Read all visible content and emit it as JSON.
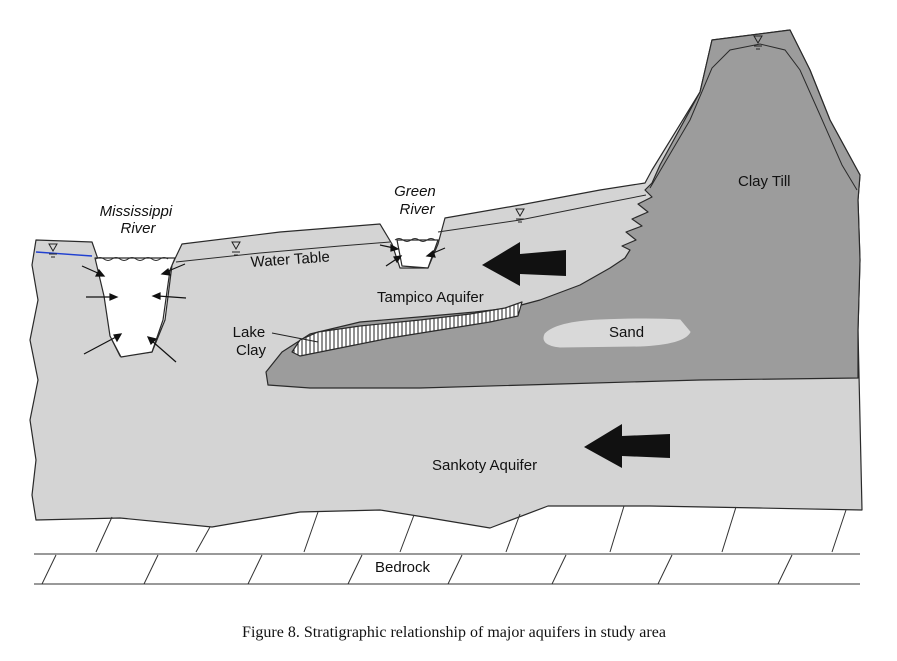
{
  "labels": {
    "mississippi_river": [
      "Mississippi",
      "River"
    ],
    "green_river": [
      "Green",
      "River"
    ],
    "water_table": "Water Table",
    "tampico_aquifer": "Tampico Aquifer",
    "lake_clay": [
      "Lake",
      "Clay"
    ],
    "sand": "Sand",
    "clay_till": "Clay Till",
    "sankoty_aquifer": "Sankoty Aquifer",
    "bedrock": "Bedrock"
  },
  "caption": "Figure 8. Stratigraphic relationship of major aquifers in study area",
  "colors": {
    "aquifer_fill": "#d4d4d4",
    "clay_till_fill": "#9c9c9c",
    "sand_fill": "#d9d9d9",
    "outline": "#2a2a2a",
    "water_line": "#2040d0",
    "flow_arrow": "#111111"
  },
  "icons": [
    "water-table-symbol-icon",
    "flow-arrow-icon",
    "seepage-arrow-icon"
  ]
}
